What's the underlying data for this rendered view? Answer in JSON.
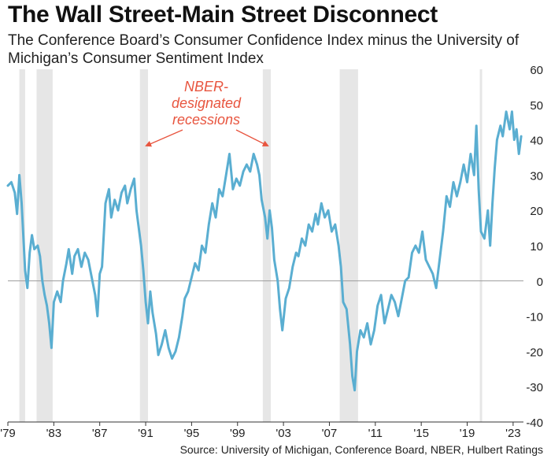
{
  "title": "The Wall Street-Main Street Disconnect",
  "subtitle": "The Conference Board’s Consumer Confidence Index minus the University of Michigan’s Consumer Sentiment Index",
  "source": "Source: University of Michigan, Conference Board, NBER, Hulbert Ratings",
  "chart_data": {
    "type": "line",
    "title": "The Wall Street-Main Street Disconnect",
    "subtitle": "The Conference Board’s Consumer Confidence Index minus the University of Michigan’s Consumer Sentiment Index",
    "xlabel": "",
    "ylabel": "",
    "xlim": [
      1979.0,
      2023.9
    ],
    "ylim": [
      -40,
      60
    ],
    "y_ticks": [
      60,
      50,
      40,
      30,
      20,
      10,
      0,
      -10,
      -20,
      -30,
      -40
    ],
    "x_ticks": [
      {
        "x": 1979,
        "label": "'79"
      },
      {
        "x": 1983,
        "label": "'83"
      },
      {
        "x": 1987,
        "label": "'87"
      },
      {
        "x": 1991,
        "label": "'91"
      },
      {
        "x": 1995,
        "label": "'95"
      },
      {
        "x": 1999,
        "label": "'99"
      },
      {
        "x": 2003,
        "label": "'03"
      },
      {
        "x": 2007,
        "label": "'07"
      },
      {
        "x": 2011,
        "label": "'11"
      },
      {
        "x": 2015,
        "label": "'15"
      },
      {
        "x": 2019,
        "label": "'19"
      },
      {
        "x": 2023,
        "label": "'23"
      }
    ],
    "grid": false,
    "y_axis_side": "right",
    "zero_line": true,
    "annotation": {
      "text": "NBER-designated recessions",
      "color": "#e8553f",
      "lines": [
        "NBER-",
        "designated",
        "recessions"
      ]
    },
    "recessions": [
      [
        1980.0,
        1980.5
      ],
      [
        1981.5,
        1982.9
      ],
      [
        1990.5,
        1991.2
      ],
      [
        2001.2,
        2001.9
      ],
      [
        2007.9,
        2009.5
      ],
      [
        2020.1,
        2020.3
      ]
    ],
    "series": [
      {
        "color": "#5aaed1",
        "points": [
          [
            1979.0,
            27
          ],
          [
            1979.3,
            28
          ],
          [
            1979.6,
            25
          ],
          [
            1979.8,
            19
          ],
          [
            1980.0,
            30
          ],
          [
            1980.2,
            22
          ],
          [
            1980.5,
            3
          ],
          [
            1980.7,
            -2
          ],
          [
            1980.9,
            8
          ],
          [
            1981.1,
            13
          ],
          [
            1981.3,
            9
          ],
          [
            1981.6,
            10
          ],
          [
            1981.8,
            7
          ],
          [
            1982.0,
            0
          ],
          [
            1982.2,
            -4
          ],
          [
            1982.4,
            -7
          ],
          [
            1982.6,
            -12
          ],
          [
            1982.8,
            -19
          ],
          [
            1983.0,
            -6
          ],
          [
            1983.3,
            -3
          ],
          [
            1983.6,
            -6
          ],
          [
            1983.8,
            0
          ],
          [
            1984.1,
            5
          ],
          [
            1984.3,
            9
          ],
          [
            1984.6,
            2
          ],
          [
            1984.8,
            7
          ],
          [
            1985.1,
            9
          ],
          [
            1985.4,
            4
          ],
          [
            1985.7,
            8
          ],
          [
            1986.0,
            6
          ],
          [
            1986.3,
            1
          ],
          [
            1986.6,
            -4
          ],
          [
            1986.8,
            -10
          ],
          [
            1987.0,
            2
          ],
          [
            1987.2,
            4
          ],
          [
            1987.5,
            22
          ],
          [
            1987.8,
            26
          ],
          [
            1988.0,
            18
          ],
          [
            1988.3,
            23
          ],
          [
            1988.6,
            20
          ],
          [
            1988.9,
            25
          ],
          [
            1989.2,
            27
          ],
          [
            1989.4,
            22
          ],
          [
            1989.7,
            26
          ],
          [
            1990.0,
            29
          ],
          [
            1990.2,
            20
          ],
          [
            1990.4,
            15
          ],
          [
            1990.6,
            10
          ],
          [
            1990.8,
            3
          ],
          [
            1991.0,
            -6
          ],
          [
            1991.2,
            -12
          ],
          [
            1991.4,
            -3
          ],
          [
            1991.6,
            -9
          ],
          [
            1991.9,
            -15
          ],
          [
            1992.1,
            -21
          ],
          [
            1992.4,
            -18
          ],
          [
            1992.7,
            -14
          ],
          [
            1993.0,
            -19
          ],
          [
            1993.3,
            -22
          ],
          [
            1993.6,
            -20
          ],
          [
            1993.9,
            -16
          ],
          [
            1994.2,
            -10
          ],
          [
            1994.4,
            -5
          ],
          [
            1994.7,
            -3
          ],
          [
            1995.0,
            1
          ],
          [
            1995.3,
            5
          ],
          [
            1995.6,
            3
          ],
          [
            1995.9,
            10
          ],
          [
            1996.2,
            8
          ],
          [
            1996.5,
            16
          ],
          [
            1996.8,
            22
          ],
          [
            1997.1,
            18
          ],
          [
            1997.4,
            26
          ],
          [
            1997.7,
            24
          ],
          [
            1998.0,
            30
          ],
          [
            1998.3,
            36
          ],
          [
            1998.6,
            26
          ],
          [
            1998.9,
            29
          ],
          [
            1999.2,
            27
          ],
          [
            1999.5,
            31
          ],
          [
            1999.8,
            33
          ],
          [
            2000.1,
            31
          ],
          [
            2000.4,
            36
          ],
          [
            2000.7,
            33
          ],
          [
            2000.9,
            30
          ],
          [
            2001.1,
            23
          ],
          [
            2001.4,
            18
          ],
          [
            2001.6,
            12
          ],
          [
            2001.8,
            20
          ],
          [
            2002.0,
            15
          ],
          [
            2002.2,
            6
          ],
          [
            2002.5,
            0
          ],
          [
            2002.7,
            -8
          ],
          [
            2002.9,
            -14
          ],
          [
            2003.2,
            -5
          ],
          [
            2003.5,
            -2
          ],
          [
            2003.8,
            4
          ],
          [
            2004.1,
            8
          ],
          [
            2004.3,
            7
          ],
          [
            2004.6,
            12
          ],
          [
            2004.9,
            10
          ],
          [
            2005.2,
            16
          ],
          [
            2005.5,
            14
          ],
          [
            2005.8,
            19
          ],
          [
            2006.0,
            16
          ],
          [
            2006.3,
            22
          ],
          [
            2006.6,
            18
          ],
          [
            2006.9,
            20
          ],
          [
            2007.2,
            14
          ],
          [
            2007.5,
            16
          ],
          [
            2007.8,
            10
          ],
          [
            2008.0,
            4
          ],
          [
            2008.2,
            -6
          ],
          [
            2008.5,
            -8
          ],
          [
            2008.8,
            -18
          ],
          [
            2009.0,
            -27
          ],
          [
            2009.2,
            -31
          ],
          [
            2009.4,
            -20
          ],
          [
            2009.7,
            -14
          ],
          [
            2010.0,
            -16
          ],
          [
            2010.3,
            -12
          ],
          [
            2010.6,
            -18
          ],
          [
            2010.9,
            -14
          ],
          [
            2011.2,
            -7
          ],
          [
            2011.5,
            -4
          ],
          [
            2011.8,
            -12
          ],
          [
            2012.1,
            -8
          ],
          [
            2012.4,
            -4
          ],
          [
            2012.7,
            -6
          ],
          [
            2013.0,
            -10
          ],
          [
            2013.3,
            -5
          ],
          [
            2013.6,
            0
          ],
          [
            2013.9,
            1
          ],
          [
            2014.2,
            8
          ],
          [
            2014.5,
            10
          ],
          [
            2014.8,
            8
          ],
          [
            2015.1,
            14
          ],
          [
            2015.4,
            6
          ],
          [
            2015.7,
            4
          ],
          [
            2016.0,
            2
          ],
          [
            2016.3,
            -2
          ],
          [
            2016.6,
            6
          ],
          [
            2016.9,
            14
          ],
          [
            2017.2,
            24
          ],
          [
            2017.5,
            21
          ],
          [
            2017.8,
            28
          ],
          [
            2018.1,
            24
          ],
          [
            2018.4,
            28
          ],
          [
            2018.7,
            33
          ],
          [
            2019.0,
            28
          ],
          [
            2019.3,
            36
          ],
          [
            2019.6,
            30
          ],
          [
            2019.8,
            44
          ],
          [
            2020.0,
            26
          ],
          [
            2020.2,
            14
          ],
          [
            2020.5,
            12
          ],
          [
            2020.8,
            20
          ],
          [
            2021.0,
            10
          ],
          [
            2021.2,
            22
          ],
          [
            2021.4,
            32
          ],
          [
            2021.6,
            40
          ],
          [
            2021.9,
            44
          ],
          [
            2022.1,
            41
          ],
          [
            2022.4,
            48
          ],
          [
            2022.7,
            43
          ],
          [
            2022.9,
            48
          ],
          [
            2023.1,
            40
          ],
          [
            2023.3,
            43
          ],
          [
            2023.5,
            36
          ],
          [
            2023.7,
            41
          ]
        ]
      }
    ]
  }
}
